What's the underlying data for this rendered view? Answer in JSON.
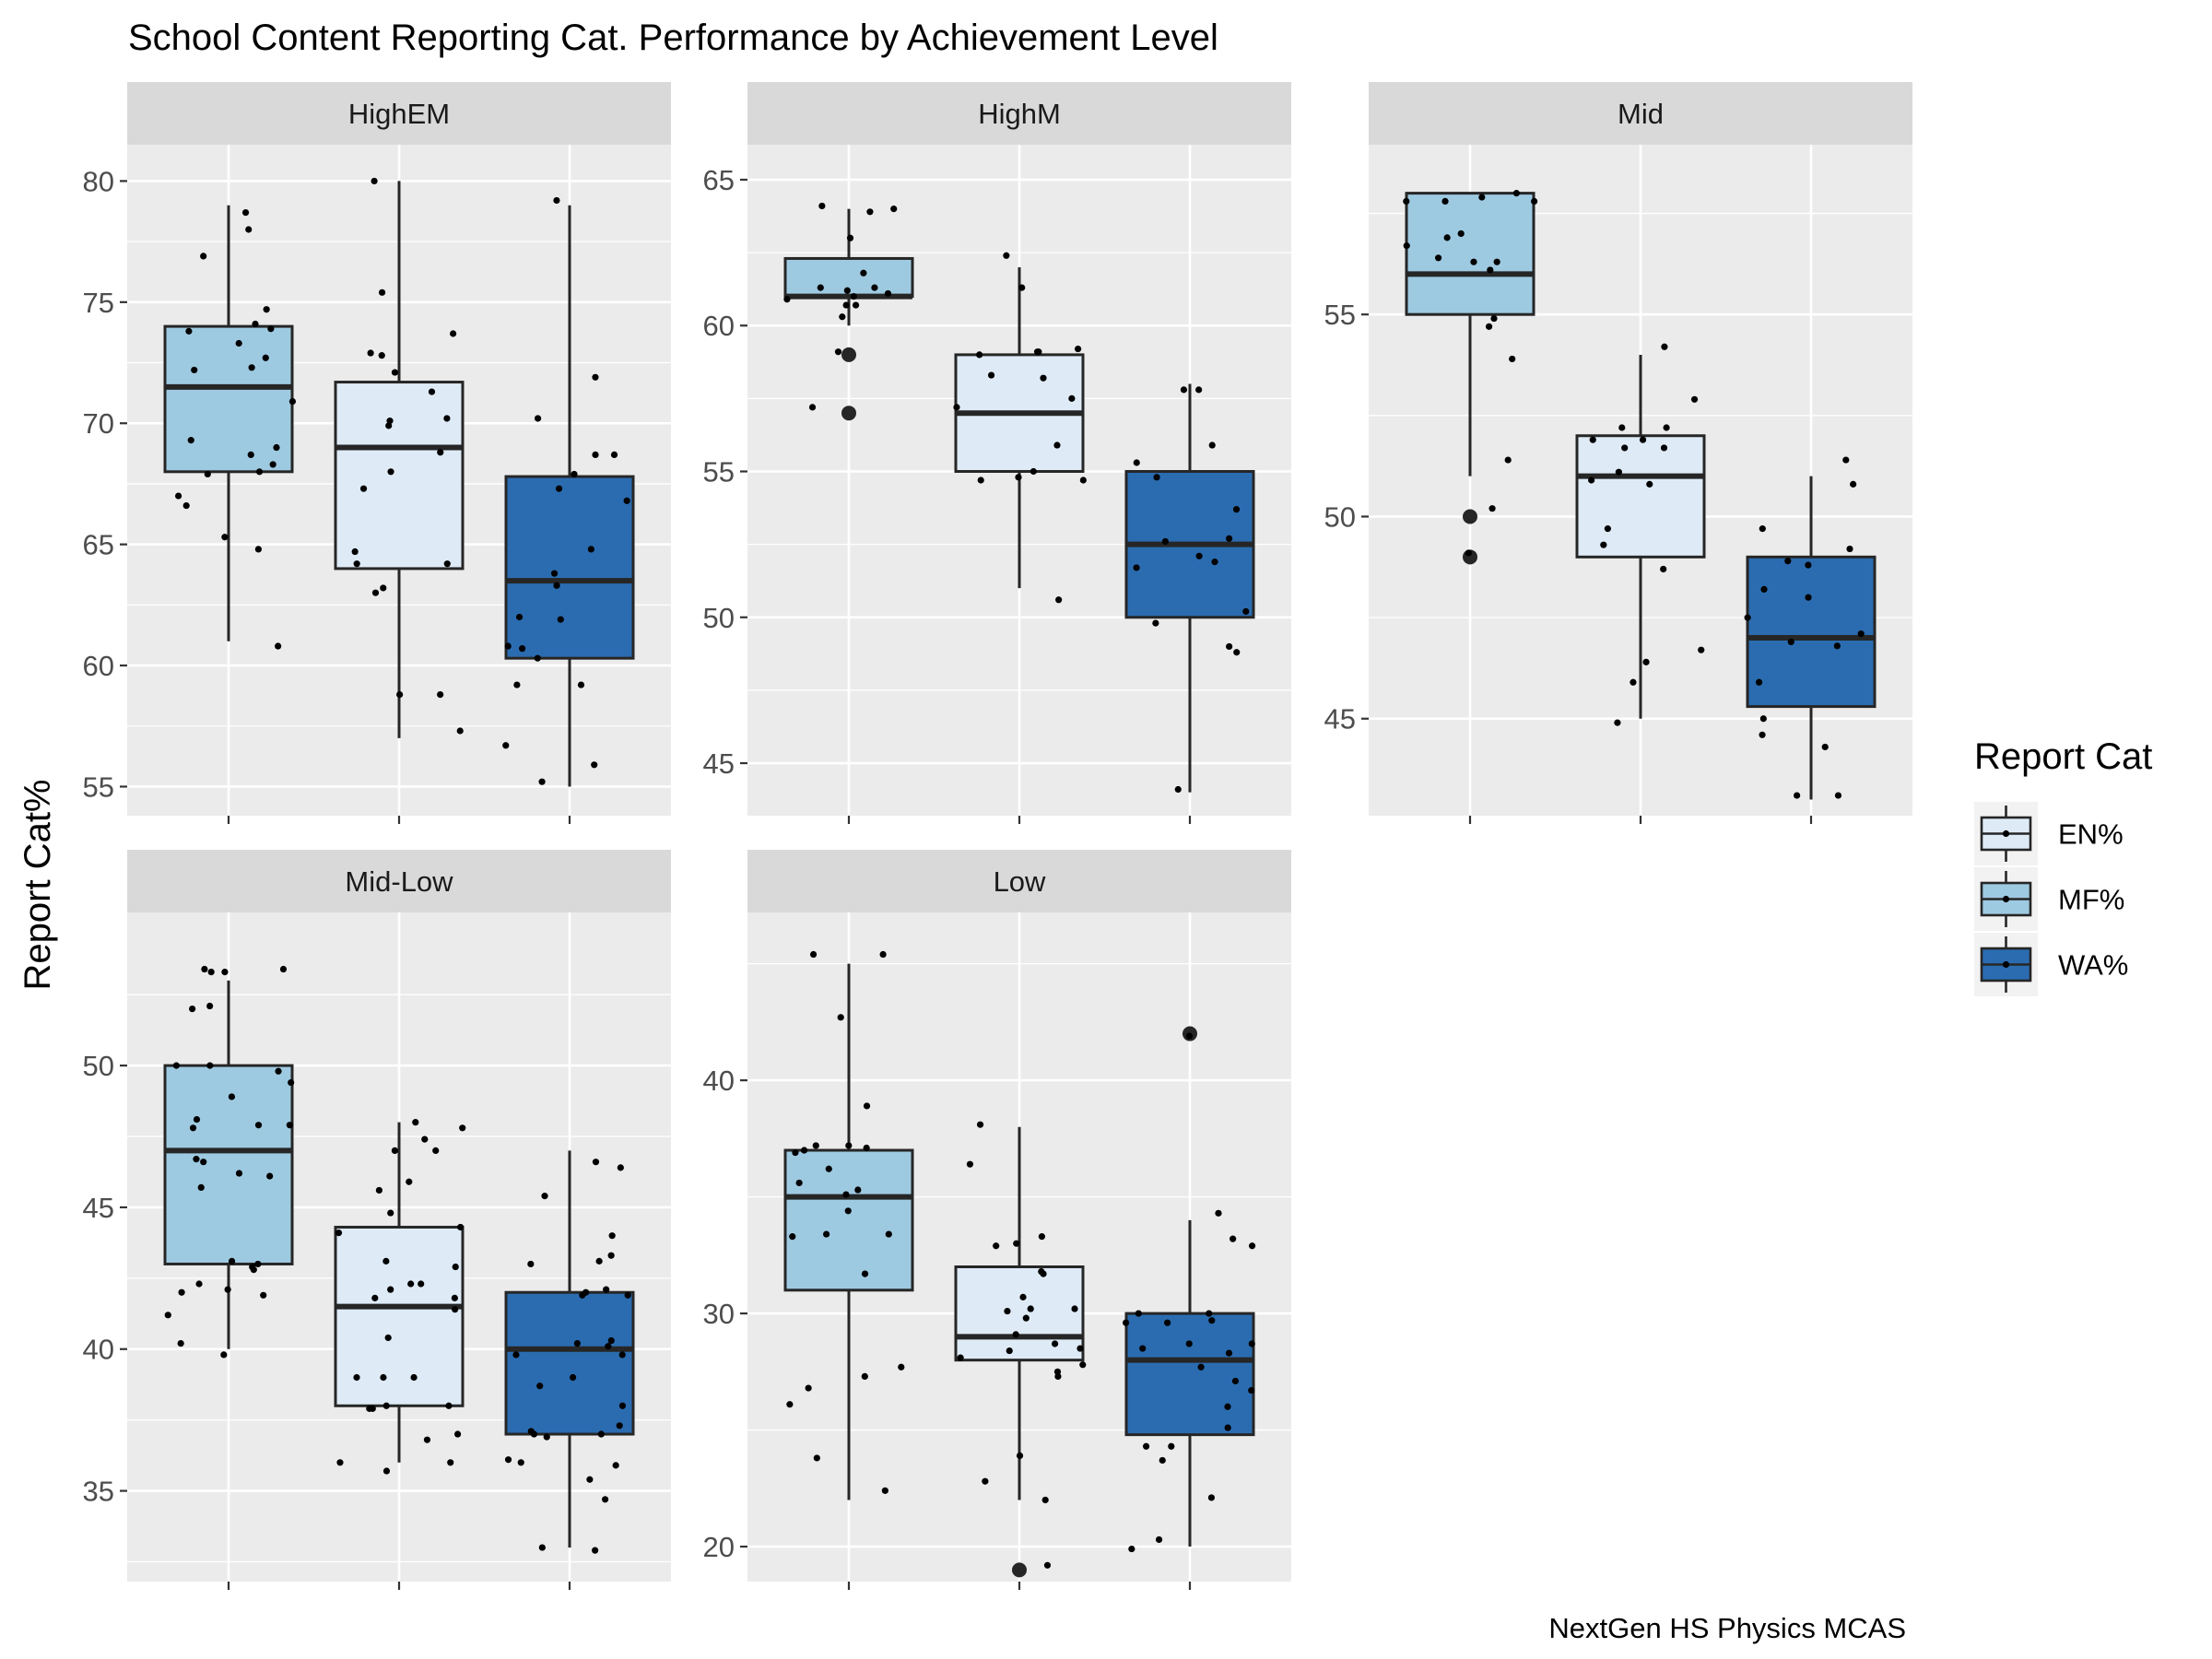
{
  "chart_data": {
    "type": "box",
    "title": "School Content Reporting Cat. Performance by Achievement Level",
    "ylabel": "Report Cat%",
    "xlabel": "",
    "caption": "NextGen HS Physics MCAS",
    "legend": {
      "title": "Report Cat",
      "position": "right",
      "items": [
        {
          "name": "EN%",
          "color": "#deebf7"
        },
        {
          "name": "MF%",
          "color": "#9ecae1"
        },
        {
          "name": "WA%",
          "color": "#2b6cb0"
        }
      ]
    },
    "x_order": [
      "MF%",
      "EN%",
      "WA%"
    ],
    "panels": [
      {
        "label": "HighEM",
        "ylim": [
          53.8,
          81.5
        ],
        "yticks": [
          55,
          60,
          65,
          70,
          75,
          80
        ],
        "boxes": [
          {
            "series": "MF%",
            "whisker_low": 61,
            "q1": 68,
            "median": 71.5,
            "q3": 74,
            "whisker_high": 79,
            "outliers": [],
            "points": [
              78,
              76.9,
              78.7,
              70.9,
              72.3,
              68.7,
              66.6,
              60.8,
              74.1,
              73.9,
              68,
              67.9,
              74.7,
              73.8,
              73.3,
              72.2,
              69.3,
              72.7,
              69,
              68.3,
              67,
              65.3,
              64.8
            ]
          },
          {
            "series": "EN%",
            "whisker_low": 57,
            "q1": 64,
            "median": 69,
            "q3": 71.7,
            "whisker_high": 80,
            "outliers": [],
            "points": [
              72.8,
              72.9,
              75.4,
              73.7,
              70.2,
              69.9,
              70.1,
              68.8,
              64.2,
              64.7,
              63,
              63.2,
              58.8,
              57.3,
              72.1,
              71.3,
              67.3,
              68,
              64.2,
              58.8,
              80
            ]
          },
          {
            "series": "WA%",
            "whisker_low": 55,
            "q1": 60.3,
            "median": 63.5,
            "q3": 67.8,
            "whisker_high": 79,
            "outliers": [],
            "points": [
              67.9,
              68.7,
              68.7,
              62,
              59.2,
              59.2,
              55.9,
              79.2,
              71.9,
              70.2,
              63.8,
              63.3,
              67.3,
              66.8,
              61.9,
              60.8,
              60.3,
              60.7,
              64.8,
              56.7,
              55.2
            ]
          }
        ]
      },
      {
        "label": "HighM",
        "ylim": [
          43.2,
          66.2
        ],
        "yticks": [
          45,
          50,
          55,
          60,
          65
        ],
        "boxes": [
          {
            "series": "MF%",
            "whisker_low": 60,
            "q1": 61,
            "median": 61,
            "q3": 62.3,
            "whisker_high": 64,
            "outliers": [
              59,
              57
            ],
            "points": [
              61.3,
              59.1,
              57.2,
              61.1,
              60.7,
              61,
              64,
              61.8,
              61.3,
              60.9,
              60.7,
              60.3,
              63,
              63.9,
              64.1,
              61.2
            ]
          },
          {
            "series": "EN%",
            "whisker_low": 51,
            "q1": 55,
            "median": 57,
            "q3": 59,
            "whisker_high": 62,
            "outliers": [],
            "points": [
              59.2,
              54.7,
              61.3,
              57.5,
              55,
              57.2,
              59.1,
              59.1,
              62.4,
              50.6,
              58.2,
              58.3,
              55.9,
              54.7,
              54.8,
              59
            ]
          },
          {
            "series": "WA%",
            "whisker_low": 44,
            "q1": 50,
            "median": 52.5,
            "q3": 55,
            "whisker_high": 58,
            "outliers": [],
            "points": [
              57.8,
              55.9,
              48.8,
              52.1,
              51.9,
              51.7,
              50.2,
              55.3,
              54.8,
              57.8,
              52.7,
              52.6,
              53.7,
              49.8,
              49,
              44.1
            ]
          }
        ]
      },
      {
        "label": "Mid",
        "ylim": [
          42.6,
          59.2
        ],
        "yticks": [
          45,
          50,
          55
        ],
        "boxes": [
          {
            "series": "MF%",
            "whisker_low": 51,
            "q1": 55,
            "median": 56,
            "q3": 58,
            "whisker_high": 58,
            "outliers": [
              50,
              49
            ],
            "points": [
              57,
              56.7,
              56.9,
              56.3,
              53.9,
              51.4,
              57.8,
              57.9,
              58,
              57.8,
              57.8,
              56.4,
              56.3,
              54.7,
              54.9,
              50.2,
              49.1,
              56.1
            ]
          },
          {
            "series": "EN%",
            "whisker_low": 45,
            "q1": 49,
            "median": 51,
            "q3": 52,
            "whisker_high": 54,
            "outliers": [],
            "points": [
              52.9,
              51.7,
              51.9,
              50.8,
              49.3,
              48.7,
              45.9,
              44.9,
              54.2,
              52.2,
              51.7,
              49.7,
              51.1,
              50.9,
              46.4,
              46.7,
              52.2,
              51.9
            ]
          },
          {
            "series": "WA%",
            "whisker_low": 43,
            "q1": 45.3,
            "median": 47,
            "q3": 49,
            "whisker_high": 51,
            "outliers": [],
            "points": [
              50.8,
              49.2,
              48.9,
              48.8,
              48,
              48.2,
              47.1,
              46.9,
              47.5,
              44.3,
              43.1,
              45.9,
              45,
              44.6,
              49.7,
              51.4,
              43.1,
              46.8
            ]
          }
        ]
      },
      {
        "label": "Mid-Low",
        "ylim": [
          31.8,
          55.4
        ],
        "yticks": [
          35,
          40,
          45,
          50
        ],
        "boxes": [
          {
            "series": "MF%",
            "whisker_low": 40,
            "q1": 43,
            "median": 47,
            "q3": 50,
            "whisker_high": 53,
            "outliers": [],
            "points": [
              52.1,
              52,
              53.3,
              53.4,
              53.4,
              50,
              49.8,
              50,
              49.4,
              47.8,
              46.7,
              46.2,
              47.9,
              48.1,
              47.9,
              46.6,
              46.1,
              45.7,
              48.9,
              43,
              43.1,
              42.8,
              42.9,
              42.3,
              42,
              41.9,
              41.2,
              40.2,
              42.1,
              39.8,
              53.3
            ]
          },
          {
            "series": "EN%",
            "whisker_low": 36,
            "q1": 38,
            "median": 41.5,
            "q3": 44.3,
            "whisker_high": 48,
            "outliers": [],
            "points": [
              47.4,
              48,
              45.9,
              45.6,
              44.8,
              42.1,
              42.3,
              41.8,
              41.4,
              41.8,
              39,
              38,
              38,
              37.9,
              36,
              35.7,
              43.1,
              42.9,
              44.3,
              44.1,
              40.4,
              39,
              39,
              36,
              37.9,
              37,
              36.8,
              47.8,
              47,
              47,
              42.3
            ]
          },
          {
            "series": "WA%",
            "whisker_low": 33,
            "q1": 37,
            "median": 40,
            "q3": 42,
            "whisker_high": 47,
            "outliers": [],
            "points": [
              46.4,
              45.4,
              42.1,
              41.9,
              42,
              40.2,
              39.8,
              38,
              37,
              36.1,
              35.4,
              33,
              43.3,
              43.1,
              41.9,
              39,
              37.3,
              37.1,
              36,
              37,
              39.8,
              40.1,
              38.7,
              36.9,
              35.9,
              34.7,
              32.9,
              46.6,
              43,
              44,
              40.3
            ]
          }
        ]
      },
      {
        "label": "Low",
        "ylim": [
          18.5,
          47.2
        ],
        "yticks": [
          20,
          30,
          40
        ],
        "boxes": [
          {
            "series": "MF%",
            "whisker_low": 22,
            "q1": 31,
            "median": 35,
            "q3": 37,
            "whisker_high": 45,
            "outliers": [],
            "points": [
              45.4,
              45.4,
              37,
              36.9,
              37.2,
              36.2,
              35.1,
              34.4,
              33.3,
              33.4,
              31.7,
              27.7,
              26.8,
              26.1,
              23.8,
              22.4,
              37.2,
              37.1,
              35.3,
              35.6,
              33.4,
              42.7,
              38.9,
              27.3
            ]
          },
          {
            "series": "EN%",
            "whisker_low": 22,
            "q1": 28,
            "median": 29,
            "q3": 32,
            "whisker_high": 38,
            "outliers": [
              19
            ],
            "points": [
              32.9,
              36.4,
              30.2,
              29.8,
              28.7,
              28.4,
              28.1,
              27.8,
              27.5,
              27.3,
              22.8,
              38.1,
              31.8,
              30.2,
              30.1,
              29.1,
              28.5,
              33.3,
              33,
              31.7,
              30.7,
              23.9,
              22,
              19.2
            ]
          },
          {
            "series": "WA%",
            "whisker_low": 20,
            "q1": 24.8,
            "median": 28,
            "q3": 30,
            "whisker_high": 34,
            "outliers": [
              42
            ],
            "points": [
              23.7,
              20.3,
              19.9,
              24.3,
              27.1,
              28.7,
              29.6,
              29.6,
              30,
              28.7,
              28.3,
              27.7,
              26.7,
              26,
              34.3,
              33.2,
              32.9,
              30,
              29.7,
              28.5,
              25.1,
              24.3,
              22.1,
              41.9
            ]
          }
        ]
      }
    ]
  }
}
